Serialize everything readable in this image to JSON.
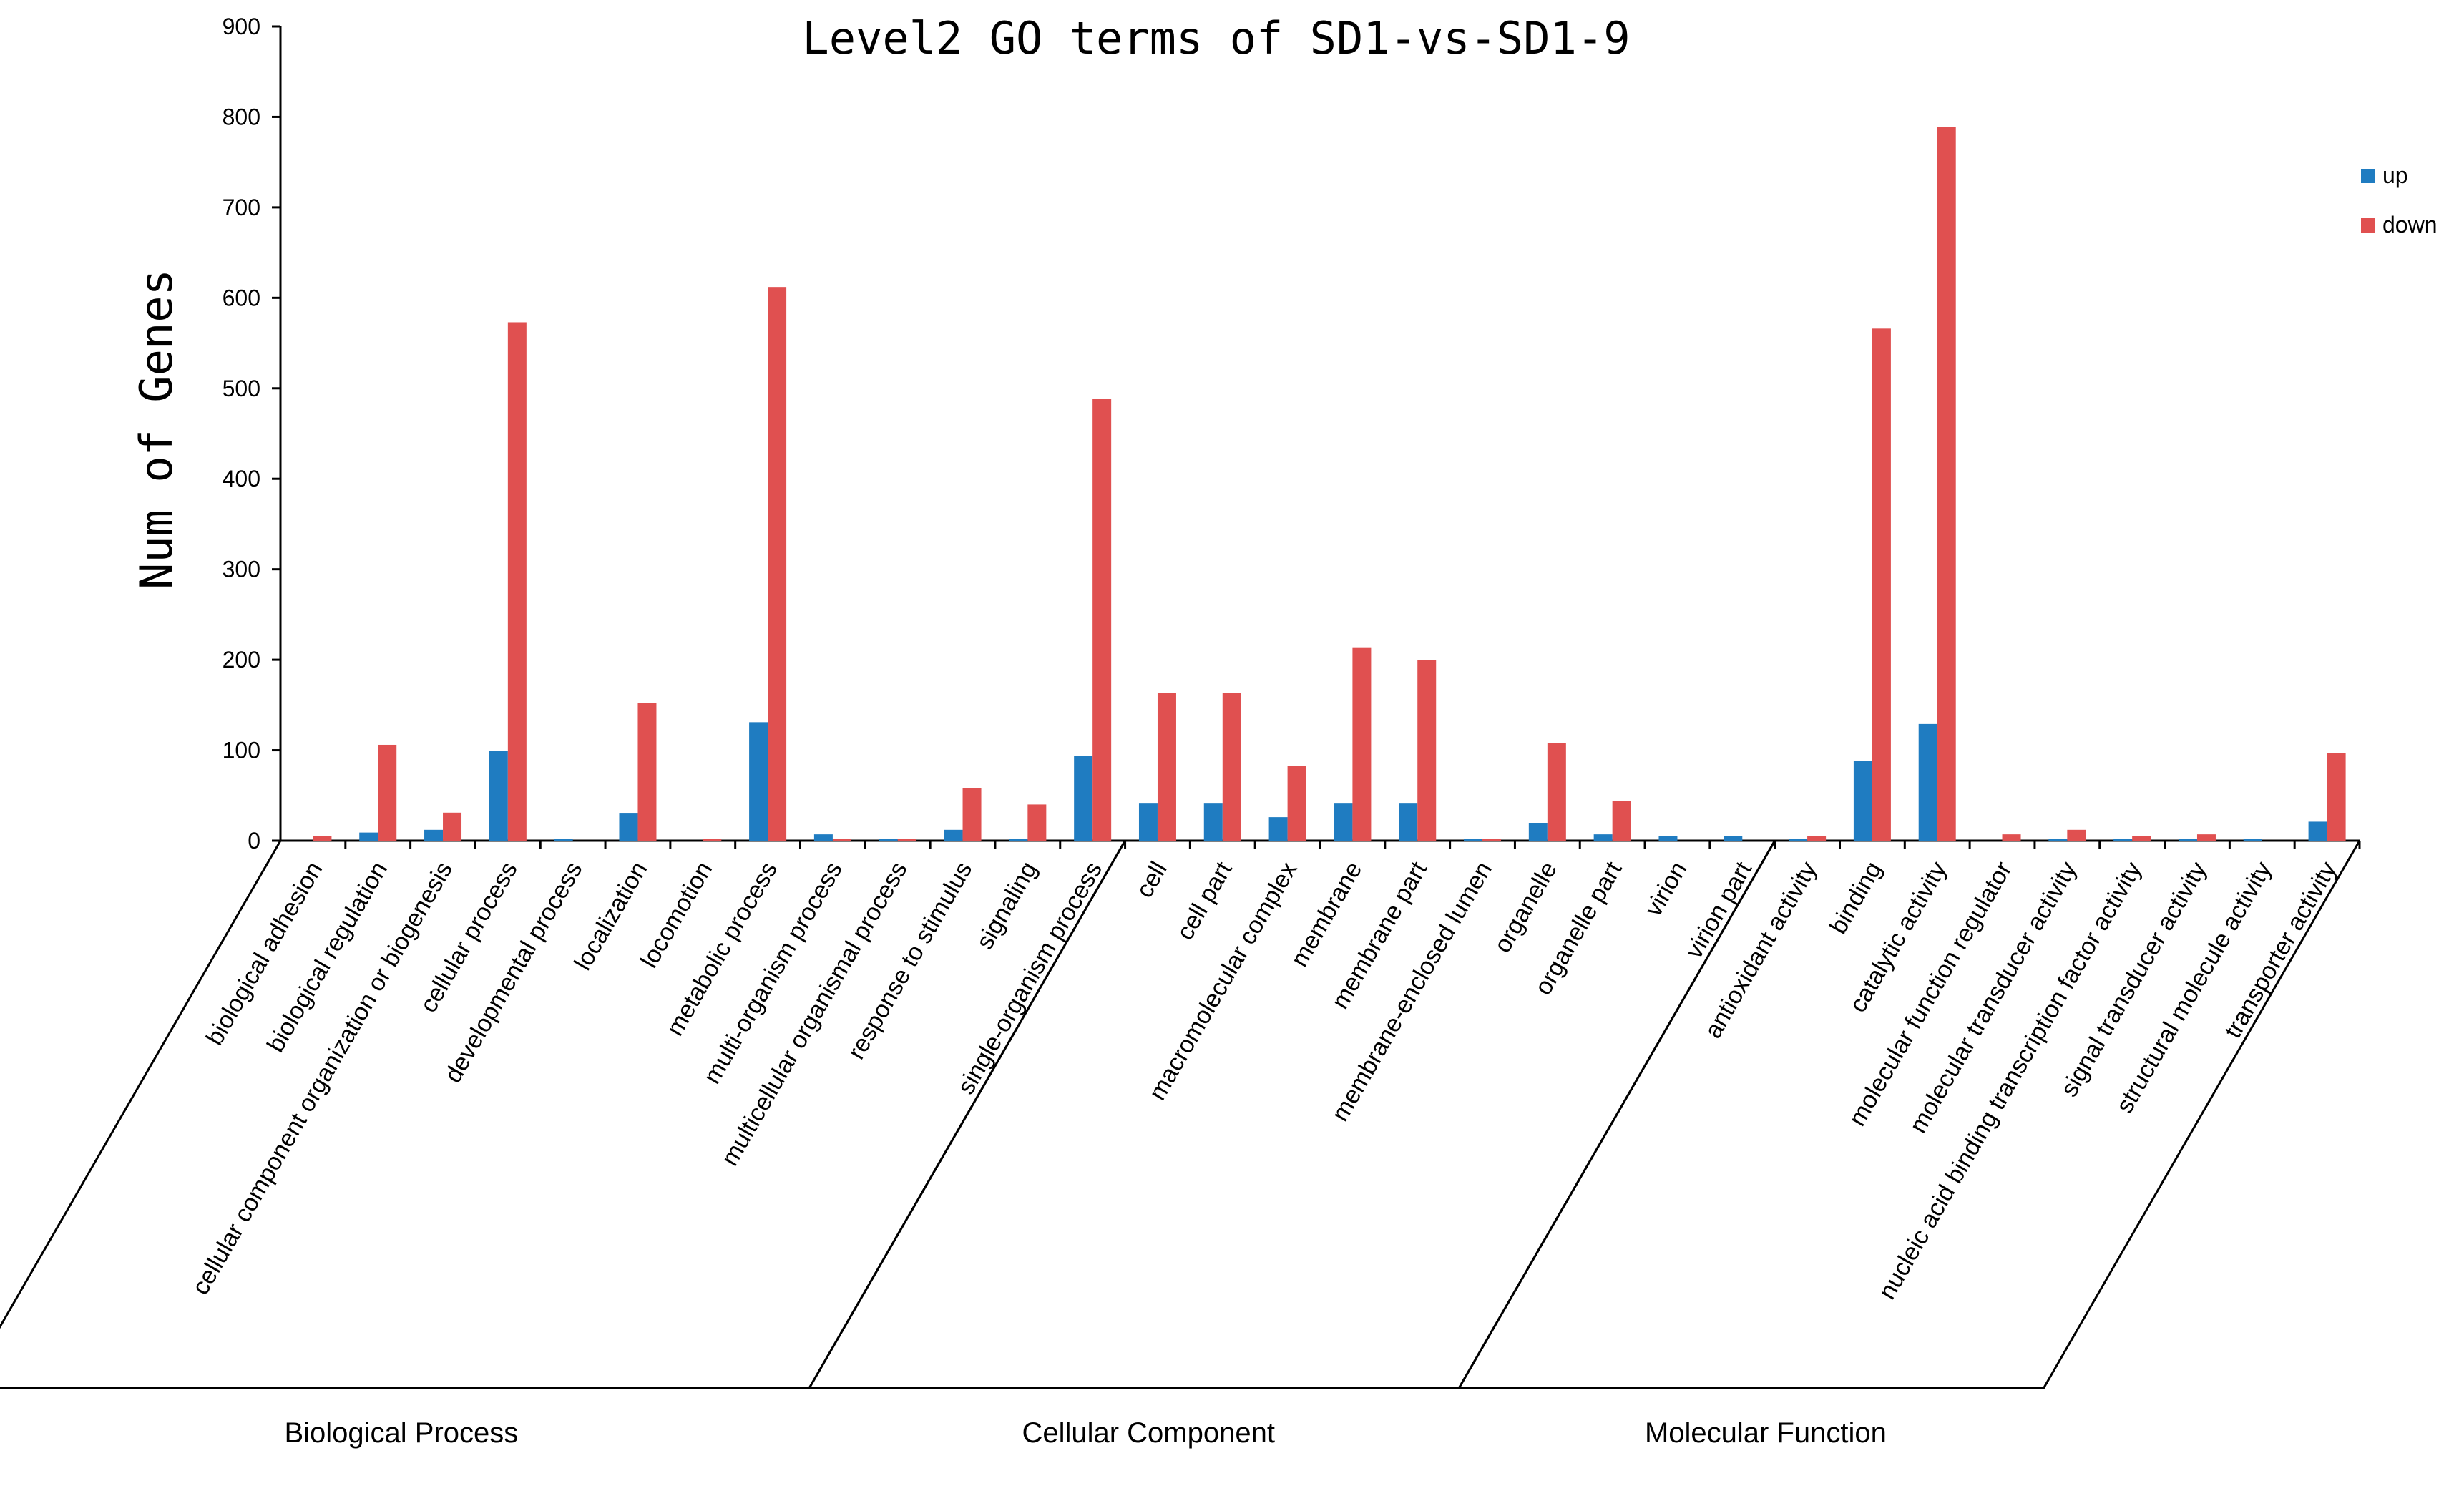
{
  "chart_data": {
    "type": "bar",
    "title": "Level2 GO terms of SD1-vs-SD1-9",
    "xlabel": "",
    "ylabel": "Num of Genes",
    "ylim": [
      0,
      900
    ],
    "yticks": [
      0,
      100,
      200,
      300,
      400,
      500,
      600,
      700,
      800,
      900
    ],
    "legend_position": "right",
    "colors": {
      "up": "#1f7cc1",
      "down": "#e05050"
    },
    "categories": [
      "biological adhesion",
      "biological regulation",
      "cellular component organization or biogenesis",
      "cellular process",
      "developmental process",
      "localization",
      "locomotion",
      "metabolic process",
      "multi-organism process",
      "multicellular organismal process",
      "response to stimulus",
      "signaling",
      "single-organism process",
      "cell",
      "cell part",
      "macromolecular complex",
      "membrane",
      "membrane part",
      "membrane-enclosed lumen",
      "organelle",
      "organelle part",
      "virion",
      "virion part",
      "antioxidant activity",
      "binding",
      "catalytic activity",
      "molecular function regulator",
      "molecular transducer activity",
      "nucleic acid binding transcription factor activity",
      "signal transducer activity",
      "structural molecule activity",
      "transporter activity"
    ],
    "series": [
      {
        "name": "up",
        "values": [
          0,
          9,
          12,
          99,
          2,
          30,
          0,
          131,
          7,
          2,
          12,
          2,
          94,
          41,
          41,
          26,
          41,
          41,
          2,
          19,
          7,
          5,
          5,
          2,
          88,
          129,
          0,
          2,
          2,
          2,
          2,
          21
        ]
      },
      {
        "name": "down",
        "values": [
          5,
          106,
          31,
          573,
          0,
          152,
          2,
          612,
          2,
          2,
          58,
          40,
          488,
          163,
          163,
          83,
          213,
          200,
          2,
          108,
          44,
          0,
          0,
          5,
          566,
          789,
          7,
          12,
          5,
          7,
          0,
          97
        ]
      }
    ],
    "groups": [
      {
        "name": "Biological Process",
        "start": 0,
        "end": 12
      },
      {
        "name": "Cellular Component",
        "start": 13,
        "end": 22
      },
      {
        "name": "Molecular Function",
        "start": 23,
        "end": 31
      }
    ]
  }
}
